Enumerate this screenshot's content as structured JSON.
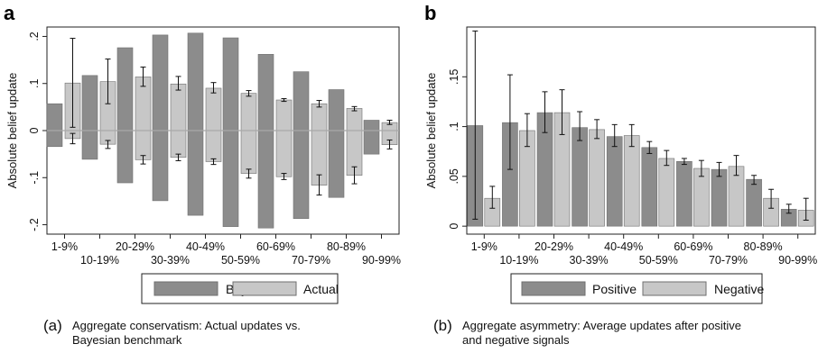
{
  "chart_data": [
    {
      "type": "bar",
      "panel_label": "a",
      "ylabel": "Absolute belief update",
      "ylim": [
        -0.22,
        0.22
      ],
      "yticks": [
        -0.2,
        -0.1,
        0,
        0.1,
        0.2
      ],
      "ytick_labels": [
        "-.2",
        "-.1",
        "0",
        ".1",
        ".2"
      ],
      "categories": [
        "1-9%",
        "10-19%",
        "20-29%",
        "30-39%",
        "40-49%",
        "50-59%",
        "60-69%",
        "70-79%",
        "80-89%",
        "90-99%"
      ],
      "series": [
        {
          "name": "Bayes",
          "pos": [
            0.057,
            0.117,
            0.176,
            0.203,
            0.207,
            0.197,
            0.162,
            0.125,
            0.087,
            0.022
          ],
          "neg": [
            -0.034,
            -0.061,
            -0.111,
            -0.149,
            -0.18,
            -0.204,
            -0.207,
            -0.187,
            -0.142,
            -0.05
          ]
        },
        {
          "name": "Actual",
          "pos": [
            0.101,
            0.104,
            0.114,
            0.099,
            0.09,
            0.079,
            0.065,
            0.057,
            0.047,
            0.017
          ],
          "neg": [
            -0.017,
            -0.029,
            -0.062,
            -0.057,
            -0.066,
            -0.091,
            -0.098,
            -0.116,
            -0.095,
            -0.03
          ],
          "pos_err": [
            [
              0.007,
              0.196
            ],
            [
              0.057,
              0.152
            ],
            [
              0.094,
              0.135
            ],
            [
              0.086,
              0.115
            ],
            [
              0.08,
              0.102
            ],
            [
              0.073,
              0.085
            ],
            [
              0.062,
              0.068
            ],
            [
              0.05,
              0.064
            ],
            [
              0.042,
              0.051
            ],
            [
              0.013,
              0.022
            ]
          ],
          "neg_err": [
            [
              -0.028,
              -0.006
            ],
            [
              -0.038,
              -0.021
            ],
            [
              -0.071,
              -0.053
            ],
            [
              -0.064,
              -0.05
            ],
            [
              -0.072,
              -0.06
            ],
            [
              -0.101,
              -0.082
            ],
            [
              -0.104,
              -0.091
            ],
            [
              -0.137,
              -0.094
            ],
            [
              -0.113,
              -0.077
            ],
            [
              -0.039,
              -0.02
            ]
          ]
        }
      ],
      "legend": [
        "Bayes",
        "Actual"
      ],
      "legend_position": "bottom",
      "grid": false
    },
    {
      "type": "bar",
      "panel_label": "b",
      "ylabel": "Absolute belief update",
      "ylim": [
        0,
        0.2
      ],
      "yticks": [
        0,
        0.05,
        0.1,
        0.15
      ],
      "ytick_labels": [
        "0",
        ".05",
        ".1",
        ".15"
      ],
      "categories": [
        "1-9%",
        "10-19%",
        "20-29%",
        "30-39%",
        "40-49%",
        "50-59%",
        "60-69%",
        "70-79%",
        "80-89%",
        "90-99%"
      ],
      "series": [
        {
          "name": "Positive",
          "values": [
            0.101,
            0.104,
            0.114,
            0.099,
            0.09,
            0.079,
            0.065,
            0.057,
            0.047,
            0.017
          ],
          "err": [
            [
              0.007,
              0.196
            ],
            [
              0.057,
              0.152
            ],
            [
              0.094,
              0.135
            ],
            [
              0.086,
              0.115
            ],
            [
              0.08,
              0.102
            ],
            [
              0.073,
              0.085
            ],
            [
              0.062,
              0.068
            ],
            [
              0.05,
              0.064
            ],
            [
              0.042,
              0.051
            ],
            [
              0.013,
              0.022
            ]
          ]
        },
        {
          "name": "Negative",
          "values": [
            0.028,
            0.096,
            0.114,
            0.097,
            0.091,
            0.068,
            0.058,
            0.06,
            0.028,
            0.016
          ],
          "err": [
            [
              0.018,
              0.04
            ],
            [
              0.08,
              0.113
            ],
            [
              0.092,
              0.137
            ],
            [
              0.088,
              0.107
            ],
            [
              0.08,
              0.102
            ],
            [
              0.061,
              0.076
            ],
            [
              0.05,
              0.066
            ],
            [
              0.051,
              0.071
            ],
            [
              0.018,
              0.037
            ],
            [
              0.006,
              0.028
            ]
          ]
        }
      ],
      "legend": [
        "Positive",
        "Negative"
      ],
      "legend_position": "bottom",
      "grid": false
    }
  ],
  "captions": {
    "a": {
      "tag": "(a)",
      "line1": "Aggregate conservatism: Actual updates vs.",
      "line2": "Bayesian benchmark"
    },
    "b": {
      "tag": "(b)",
      "line1": "Aggregate asymmetry: Average updates after positive",
      "line2": "and negative signals"
    }
  },
  "colors": {
    "dark_bar": "#8c8c8c",
    "light_bar": "#c7c7c7",
    "bar_stroke": "#6f6f6f",
    "error_bar": "#111111",
    "zero_line": "#a8a8a8"
  }
}
